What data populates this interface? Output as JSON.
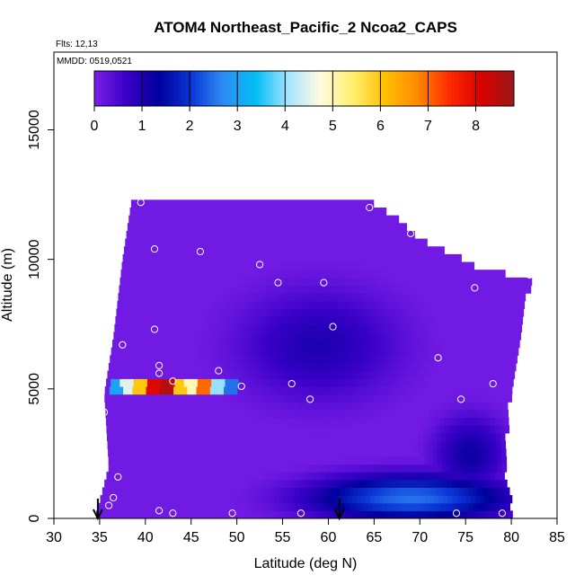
{
  "chart_data": {
    "type": "heatmap",
    "title": "ATOM4 Northeast_Pacific_2 Ncoa2_CAPS",
    "subtitle_flights": "Flts: 12,13",
    "subtitle_dates": "MMDD: 0519,0521",
    "xlabel": "Latitude (deg N)",
    "ylabel": "Altitude (m)",
    "xlim": [
      30,
      85
    ],
    "ylim": [
      0,
      18000
    ],
    "x_ticks": [
      30,
      35,
      40,
      45,
      50,
      55,
      60,
      65,
      70,
      75,
      80,
      85
    ],
    "y_ticks": [
      0,
      5000,
      10000,
      15000
    ],
    "colorbar": {
      "range": [
        0,
        8.8
      ],
      "ticks": [
        0,
        1,
        2,
        3,
        4,
        5,
        6,
        7,
        8
      ],
      "palette": [
        "#7a1fe8",
        "#3a00c8",
        "#00009c",
        "#0b36d6",
        "#2f8cf3",
        "#00bff5",
        "#a6e4ff",
        "#fffbe0",
        "#fff070",
        "#ffc000",
        "#ff8a00",
        "#ff2a00",
        "#d80000",
        "#9a1a1a"
      ]
    },
    "background_value": 0.1,
    "coverage": {
      "top_edge": [
        [
          36.5,
          12000
        ],
        [
          38.5,
          12300
        ],
        [
          64.5,
          12300
        ],
        [
          67,
          11700
        ],
        [
          70,
          10800
        ],
        [
          73.5,
          10200
        ],
        [
          77,
          9600
        ],
        [
          82,
          9300
        ]
      ],
      "bottom_edge": [
        [
          34.5,
          0
        ],
        [
          80,
          0
        ]
      ],
      "left_edge": [
        [
          38.5,
          12300
        ],
        [
          37.5,
          10000
        ],
        [
          36.5,
          7000
        ],
        [
          35.5,
          4800
        ],
        [
          36,
          2000
        ],
        [
          34.5,
          0
        ]
      ],
      "right_edge": [
        [
          82,
          9300
        ],
        [
          80.5,
          7000
        ],
        [
          79.5,
          4500
        ],
        [
          79,
          2000
        ],
        [
          80,
          0
        ]
      ]
    },
    "features": [
      {
        "name": "mid-level minimum",
        "center": [
          59,
          6700
        ],
        "radius": [
          9,
          2200
        ],
        "value": 1.0
      },
      {
        "name": "boundary-layer band",
        "center": [
          69,
          800
        ],
        "radius": [
          11,
          900
        ],
        "value": 2.5
      },
      {
        "name": "diagonal band",
        "center": [
          75.5,
          2500
        ],
        "radius": [
          4,
          1500
        ],
        "value": 1.2
      },
      {
        "name": "mid-level layer enhancement",
        "center": [
          43.5,
          5100
        ],
        "value_profile": [
          3,
          4.5,
          6,
          8,
          8.5,
          6,
          5,
          7,
          4,
          2.5
        ]
      }
    ],
    "sample_points": [
      [
        39.5,
        12200
      ],
      [
        41,
        10400
      ],
      [
        46,
        10300
      ],
      [
        52.5,
        9800
      ],
      [
        54.5,
        9100
      ],
      [
        59.5,
        9100
      ],
      [
        64.5,
        12000
      ],
      [
        67,
        12100
      ],
      [
        69,
        11000
      ],
      [
        76,
        8900
      ],
      [
        82,
        9400
      ],
      [
        37.5,
        6700
      ],
      [
        41,
        7300
      ],
      [
        41.5,
        5900
      ],
      [
        41.5,
        5600
      ],
      [
        48,
        5700
      ],
      [
        43,
        5300
      ],
      [
        50.5,
        5100
      ],
      [
        56,
        5200
      ],
      [
        58,
        4600
      ],
      [
        60.5,
        7400
      ],
      [
        72,
        6200
      ],
      [
        74.5,
        4600
      ],
      [
        78,
        5200
      ],
      [
        80.5,
        4300
      ],
      [
        35.5,
        4100
      ],
      [
        37,
        1600
      ],
      [
        36.5,
        800
      ],
      [
        36,
        500
      ],
      [
        41.5,
        300
      ],
      [
        43,
        200
      ],
      [
        49.5,
        200
      ],
      [
        57,
        200
      ],
      [
        74,
        200
      ],
      [
        79,
        200
      ]
    ],
    "flight_markers": [
      34.8,
      61.2
    ]
  }
}
